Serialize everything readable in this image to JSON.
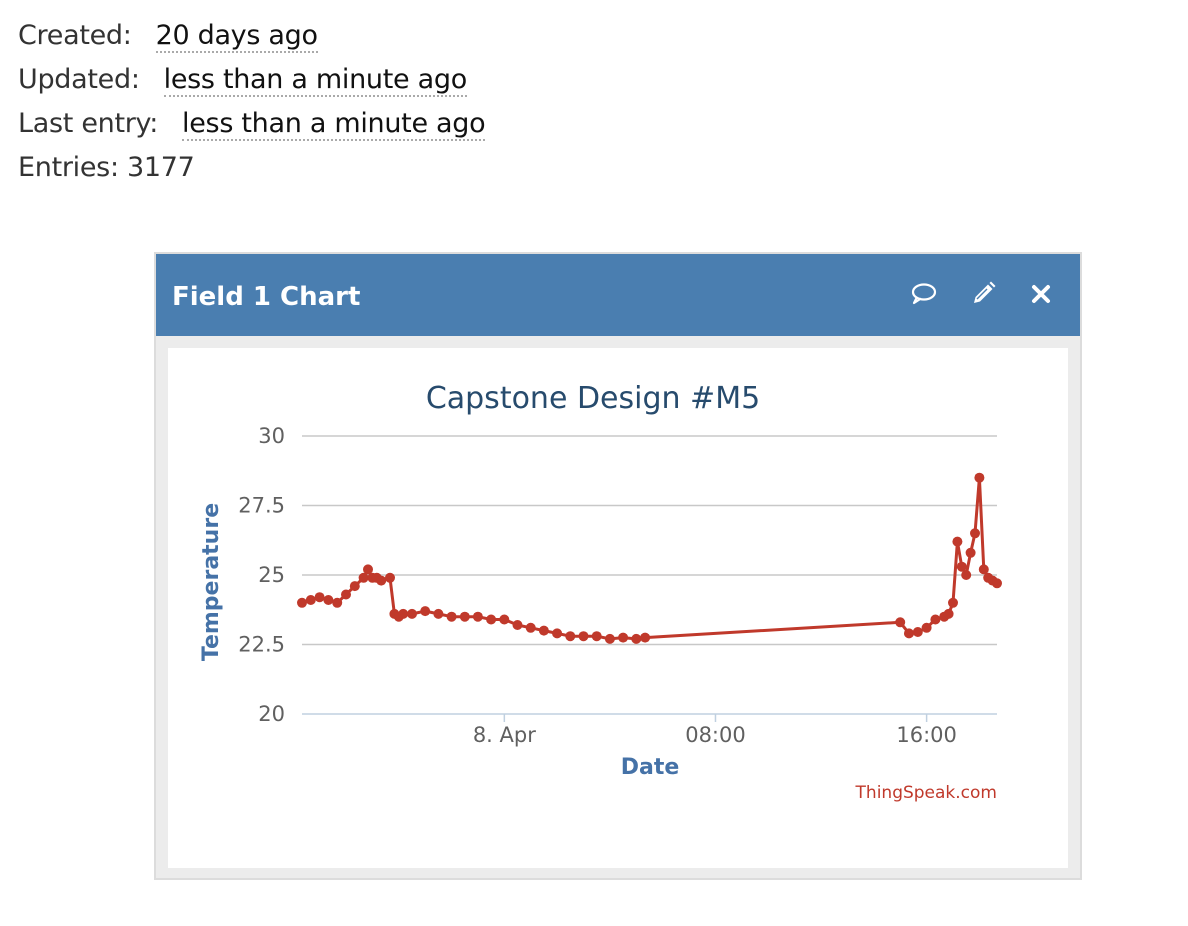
{
  "meta": {
    "created_label": "Created:",
    "created_value": "20 days ago",
    "updated_label": "Updated:",
    "updated_value": "less than a minute ago",
    "last_entry_label": "Last entry:",
    "last_entry_value": "less than a minute ago",
    "entries_label": "Entries:",
    "entries_value": "3177"
  },
  "widget": {
    "title": "Field 1 Chart",
    "icons": [
      "comment-icon",
      "pencil-icon",
      "close-icon"
    ],
    "header_color": "#4a7eb0"
  },
  "chart_data": {
    "type": "line",
    "title": "Capstone Design #M5",
    "xlabel": "Date",
    "ylabel": "Temperature",
    "credit": "ThingSpeak.com",
    "ylim": [
      20,
      30
    ],
    "yticks": [
      "20",
      "22.5",
      "25",
      "27.5",
      "30"
    ],
    "xticks": [
      "8. Apr",
      "08:00",
      "16:00"
    ],
    "xlim": [
      "2017-04-07T16:20",
      "2017-04-08T18:40"
    ],
    "grid": true,
    "series_color": "#c0392b",
    "series": [
      {
        "x": [
          "2017-04-07T16:20",
          "2017-04-07T16:40",
          "2017-04-07T17:00",
          "2017-04-07T17:20",
          "2017-04-07T17:40",
          "2017-04-07T18:00",
          "2017-04-07T18:20",
          "2017-04-07T18:40",
          "2017-04-07T18:50",
          "2017-04-07T19:00",
          "2017-04-07T19:10",
          "2017-04-07T19:20",
          "2017-04-07T19:40",
          "2017-04-07T19:50",
          "2017-04-07T20:00",
          "2017-04-07T20:10",
          "2017-04-07T20:30",
          "2017-04-07T21:00",
          "2017-04-07T21:30",
          "2017-04-07T22:00",
          "2017-04-07T22:30",
          "2017-04-07T23:00",
          "2017-04-07T23:30",
          "2017-04-08T00:00",
          "2017-04-08T00:30",
          "2017-04-08T01:00",
          "2017-04-08T01:30",
          "2017-04-08T02:00",
          "2017-04-08T02:30",
          "2017-04-08T03:00",
          "2017-04-08T03:30",
          "2017-04-08T04:00",
          "2017-04-08T04:30",
          "2017-04-08T05:00",
          "2017-04-08T05:20",
          "2017-04-08T15:00",
          "2017-04-08T15:20",
          "2017-04-08T15:40",
          "2017-04-08T16:00",
          "2017-04-08T16:20",
          "2017-04-08T16:40",
          "2017-04-08T16:50",
          "2017-04-08T17:00",
          "2017-04-08T17:10",
          "2017-04-08T17:20",
          "2017-04-08T17:30",
          "2017-04-08T17:40",
          "2017-04-08T17:50",
          "2017-04-08T18:00",
          "2017-04-08T18:10",
          "2017-04-08T18:20",
          "2017-04-08T18:30",
          "2017-04-08T18:40"
        ],
        "y": [
          24.0,
          24.1,
          24.2,
          24.1,
          24.0,
          24.3,
          24.6,
          24.9,
          25.2,
          24.9,
          24.9,
          24.8,
          24.9,
          23.6,
          23.5,
          23.6,
          23.6,
          23.7,
          23.6,
          23.5,
          23.5,
          23.5,
          23.4,
          23.4,
          23.2,
          23.1,
          23.0,
          22.9,
          22.8,
          22.8,
          22.8,
          22.7,
          22.75,
          22.7,
          22.75,
          23.3,
          22.9,
          22.95,
          23.1,
          23.4,
          23.5,
          23.6,
          24.0,
          26.2,
          25.3,
          25.0,
          25.8,
          26.5,
          28.5,
          25.2,
          24.9,
          24.8,
          24.7
        ]
      }
    ]
  }
}
